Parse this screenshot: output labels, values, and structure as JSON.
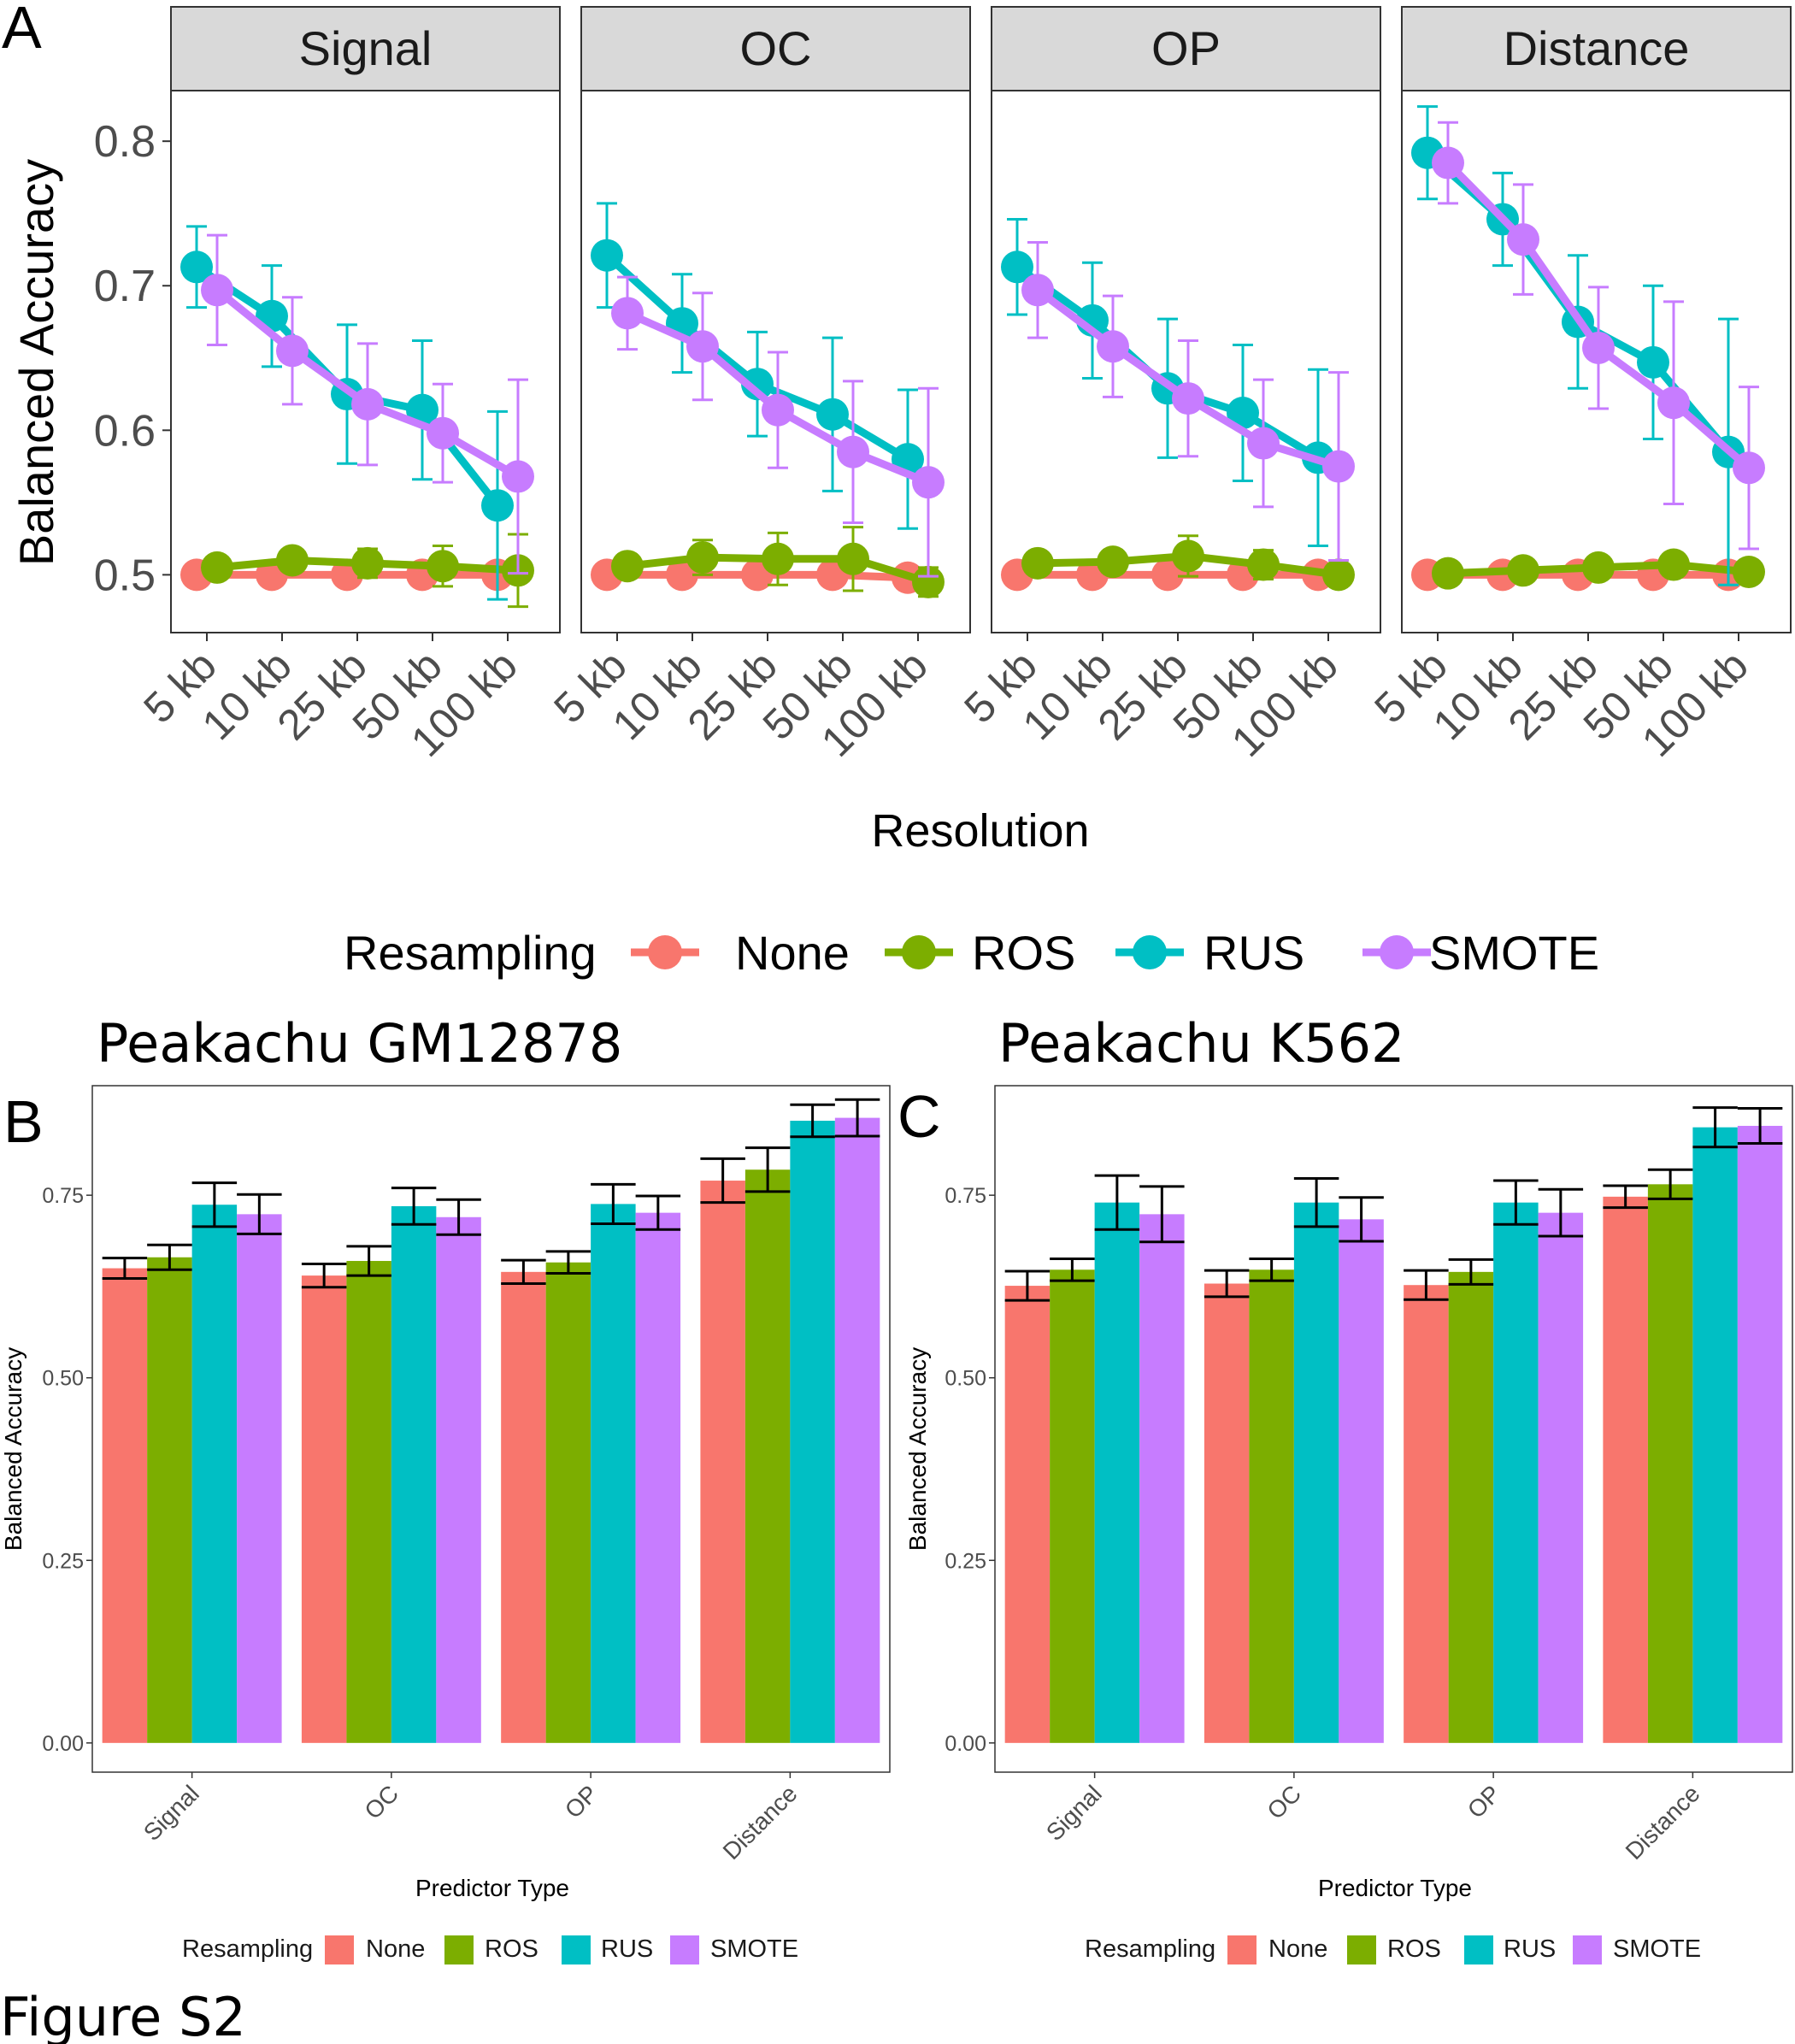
{
  "figure_label": "Figure S2",
  "panel_labels": {
    "a": "A",
    "b": "B",
    "c": "C"
  },
  "colors": {
    "None": "#F8766D",
    "ROS": "#7CAE00",
    "RUS": "#00BFC4",
    "SMOTE": "#C77CFF"
  },
  "legend": {
    "title": "Resampling",
    "items": [
      "None",
      "ROS",
      "RUS",
      "SMOTE"
    ]
  },
  "chart_data": [
    {
      "id": "A",
      "type": "line",
      "facets": [
        "Signal",
        "OC",
        "OP",
        "Distance"
      ],
      "x": [
        "5 kb",
        "10 kb",
        "25 kb",
        "50 kb",
        "100 kb"
      ],
      "xlabel": "Resolution",
      "ylabel": "Balanced Accuracy",
      "ylim": [
        0.46,
        0.835
      ],
      "yticks": [
        0.5,
        0.6,
        0.7,
        0.8
      ],
      "ytick_labels": [
        "0.5",
        "0.6",
        "0.7",
        "0.8"
      ],
      "legend_position": "bottom",
      "series": [
        {
          "name": "None",
          "facets": [
            {
              "values": [
                0.5,
                0.5,
                0.5,
                0.5,
                0.5
              ],
              "err": [
                0.002,
                0.002,
                0.002,
                0.002,
                0.002
              ]
            },
            {
              "values": [
                0.5,
                0.5,
                0.5,
                0.5,
                0.498
              ],
              "err": [
                0.002,
                0.002,
                0.002,
                0.002,
                0.002
              ]
            },
            {
              "values": [
                0.5,
                0.5,
                0.5,
                0.5,
                0.5
              ],
              "err": [
                0.002,
                0.002,
                0.002,
                0.002,
                0.002
              ]
            },
            {
              "values": [
                0.5,
                0.5,
                0.5,
                0.5,
                0.5
              ],
              "err": [
                0.002,
                0.002,
                0.002,
                0.002,
                0.002
              ]
            }
          ]
        },
        {
          "name": "ROS",
          "facets": [
            {
              "values": [
                0.505,
                0.51,
                0.508,
                0.506,
                0.503
              ],
              "err": [
                0.006,
                0.006,
                0.01,
                0.014,
                0.025
              ]
            },
            {
              "values": [
                0.506,
                0.512,
                0.511,
                0.511,
                0.495
              ],
              "err": [
                0.008,
                0.012,
                0.018,
                0.022,
                0.01
              ]
            },
            {
              "values": [
                0.508,
                0.509,
                0.513,
                0.507,
                0.5
              ],
              "err": [
                0.005,
                0.008,
                0.014,
                0.01,
                0.004
              ]
            },
            {
              "values": [
                0.501,
                0.503,
                0.505,
                0.507,
                0.502
              ],
              "err": [
                0.004,
                0.005,
                0.006,
                0.006,
                0.004
              ]
            }
          ]
        },
        {
          "name": "RUS",
          "facets": [
            {
              "values": [
                0.713,
                0.679,
                0.625,
                0.614,
                0.548
              ],
              "err": [
                0.028,
                0.035,
                0.048,
                0.048,
                0.065
              ]
            },
            {
              "values": [
                0.721,
                0.674,
                0.632,
                0.611,
                0.58
              ],
              "err": [
                0.036,
                0.034,
                0.036,
                0.053,
                0.048
              ]
            },
            {
              "values": [
                0.713,
                0.676,
                0.629,
                0.612,
                0.581
              ],
              "err": [
                0.033,
                0.04,
                0.048,
                0.047,
                0.061
              ]
            },
            {
              "values": [
                0.792,
                0.746,
                0.675,
                0.647,
                0.585
              ],
              "err": [
                0.032,
                0.032,
                0.046,
                0.053,
                0.092
              ]
            }
          ]
        },
        {
          "name": "SMOTE",
          "facets": [
            {
              "values": [
                0.697,
                0.655,
                0.618,
                0.598,
                0.568
              ],
              "err": [
                0.038,
                0.037,
                0.042,
                0.034,
                0.067
              ]
            },
            {
              "values": [
                0.681,
                0.658,
                0.614,
                0.585,
                0.564
              ],
              "err": [
                0.025,
                0.037,
                0.04,
                0.049,
                0.065
              ]
            },
            {
              "values": [
                0.697,
                0.658,
                0.622,
                0.591,
                0.575
              ],
              "err": [
                0.033,
                0.035,
                0.04,
                0.044,
                0.065
              ]
            },
            {
              "values": [
                0.785,
                0.732,
                0.657,
                0.619,
                0.574
              ],
              "err": [
                0.028,
                0.038,
                0.042,
                0.07,
                0.056
              ]
            }
          ]
        }
      ]
    },
    {
      "id": "B",
      "type": "bar",
      "title": "Peakachu GM12878",
      "categories": [
        "Signal",
        "OC",
        "OP",
        "Distance"
      ],
      "xlabel": "Predictor Type",
      "ylabel": "Balanced Accuracy",
      "ylim": [
        -0.04,
        0.9
      ],
      "yticks": [
        0,
        0.25,
        0.5,
        0.75
      ],
      "ytick_labels": [
        "0.00",
        "0.25",
        "0.50",
        "0.75"
      ],
      "legend_position": "bottom",
      "series": [
        {
          "name": "None",
          "values": [
            0.65,
            0.64,
            0.645,
            0.77
          ],
          "err": [
            0.014,
            0.016,
            0.016,
            0.03
          ]
        },
        {
          "name": "ROS",
          "values": [
            0.665,
            0.66,
            0.658,
            0.785
          ],
          "err": [
            0.017,
            0.02,
            0.015,
            0.03
          ]
        },
        {
          "name": "RUS",
          "values": [
            0.737,
            0.735,
            0.738,
            0.852
          ],
          "err": [
            0.03,
            0.025,
            0.027,
            0.022
          ]
        },
        {
          "name": "SMOTE",
          "values": [
            0.724,
            0.72,
            0.726,
            0.856
          ],
          "err": [
            0.027,
            0.024,
            0.023,
            0.025
          ]
        }
      ]
    },
    {
      "id": "C",
      "type": "bar",
      "title": "Peakachu K562",
      "categories": [
        "Signal",
        "OC",
        "OP",
        "Distance"
      ],
      "xlabel": "Predictor Type",
      "ylabel": "Balanced Accuracy",
      "ylim": [
        -0.04,
        0.9
      ],
      "yticks": [
        0,
        0.25,
        0.5,
        0.75
      ],
      "ytick_labels": [
        "0.00",
        "0.25",
        "0.50",
        "0.75"
      ],
      "legend_position": "bottom",
      "series": [
        {
          "name": "None",
          "values": [
            0.626,
            0.629,
            0.627,
            0.748
          ],
          "err": [
            0.02,
            0.018,
            0.02,
            0.015
          ]
        },
        {
          "name": "ROS",
          "values": [
            0.648,
            0.648,
            0.645,
            0.765
          ],
          "err": [
            0.015,
            0.015,
            0.017,
            0.02
          ]
        },
        {
          "name": "RUS",
          "values": [
            0.74,
            0.74,
            0.74,
            0.843
          ],
          "err": [
            0.037,
            0.033,
            0.03,
            0.027
          ]
        },
        {
          "name": "SMOTE",
          "values": [
            0.724,
            0.717,
            0.726,
            0.845
          ],
          "err": [
            0.038,
            0.03,
            0.032,
            0.024
          ]
        }
      ]
    }
  ]
}
